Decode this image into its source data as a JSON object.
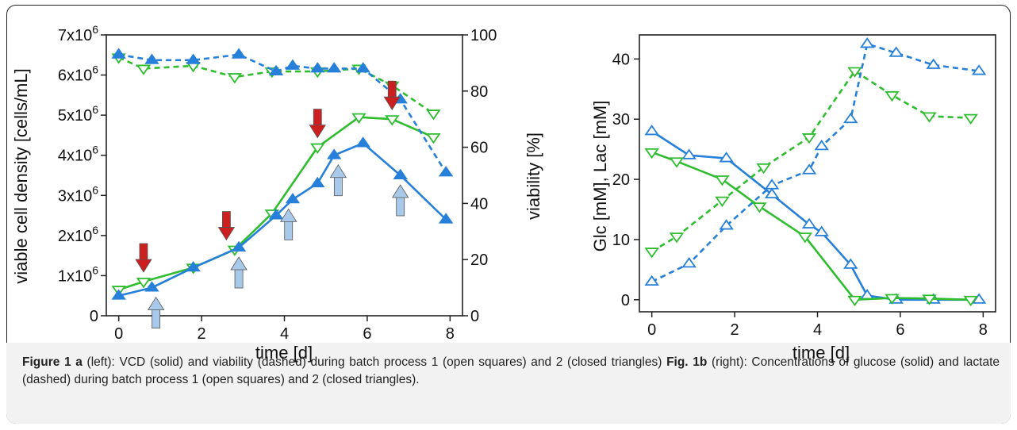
{
  "charts": [
    {
      "type": "line",
      "xlabel": "time [d]",
      "ylabel": "viable cell density [cells/mL]",
      "ylabel_right": "viability [%]",
      "xticks": [
        "0",
        "2",
        "4",
        "6",
        "8"
      ],
      "yticks_left": [
        "0",
        "1x10^6",
        "2x10^6",
        "3x10^6",
        "4x10^6",
        "5x10^6",
        "6x10^6",
        "7x10^6"
      ],
      "yticks_right": [
        "0",
        "20",
        "40",
        "60",
        "80",
        "100"
      ],
      "xlim": [
        -0.3,
        8.3
      ],
      "ylim": [
        0,
        7000000
      ],
      "ylim_right": [
        0,
        100
      ]
    },
    {
      "type": "line",
      "xlabel": "time [d]",
      "ylabel": "Glc [mM], Lac [mM]",
      "xticks": [
        "0",
        "2",
        "4",
        "6",
        "8"
      ],
      "yticks": [
        "0",
        "10",
        "20",
        "30",
        "40"
      ],
      "xlim": [
        -0.3,
        8.3
      ],
      "ylim": [
        -2,
        44
      ]
    }
  ],
  "chart_data": [
    {
      "type": "line",
      "xlabel": "time [d]",
      "ylabel": "viable cell density [cells/mL]",
      "ylabel_right": "viability [%]",
      "series": [
        {
          "axis": "left",
          "style": "solid",
          "color": "#2ebd2e",
          "marker": "open-triangle-down",
          "x": [
            0,
            0.6,
            1.8,
            2.8,
            3.7,
            4.8,
            5.8,
            6.6,
            7.6
          ],
          "y": [
            650000,
            850000,
            1200000,
            1650000,
            2550000,
            4200000,
            4950000,
            4900000,
            4450000
          ]
        },
        {
          "axis": "left",
          "style": "solid",
          "color": "#2680d9",
          "marker": "closed-triangle-up",
          "x": [
            0,
            0.8,
            1.8,
            2.9,
            3.8,
            4.2,
            4.8,
            5.2,
            5.9,
            6.8,
            7.9
          ],
          "y": [
            500000,
            700000,
            1200000,
            1700000,
            2500000,
            2900000,
            3300000,
            4000000,
            4300000,
            3500000,
            2400000
          ]
        },
        {
          "axis": "right",
          "style": "dashed",
          "color": "#2ebd2e",
          "marker": "open-triangle-down",
          "x": [
            0,
            0.6,
            1.8,
            2.8,
            3.7,
            4.8,
            5.8,
            6.6,
            7.6
          ],
          "y": [
            92,
            88,
            89,
            85,
            87,
            87,
            88,
            82,
            72
          ]
        },
        {
          "axis": "right",
          "style": "dashed",
          "color": "#2680d9",
          "marker": "closed-triangle-up",
          "x": [
            0,
            0.8,
            1.8,
            2.9,
            3.8,
            4.2,
            4.8,
            5.2,
            5.9,
            6.8,
            7.9
          ],
          "y": [
            93,
            91,
            91,
            93,
            87,
            89,
            88,
            88,
            88,
            77,
            51
          ]
        }
      ],
      "annotations": [
        {
          "type": "feed-arrow",
          "color": "#cc1f1f",
          "direction": "down",
          "x": [
            0.6,
            2.6,
            4.8,
            6.6
          ]
        },
        {
          "type": "feed-arrow",
          "color": "#a9c9ea",
          "direction": "up",
          "x": [
            0.9,
            2.9,
            4.1,
            5.3,
            6.8
          ]
        }
      ]
    },
    {
      "type": "line",
      "xlabel": "time [d]",
      "ylabel": "Glc [mM], Lac [mM]",
      "series": [
        {
          "style": "solid",
          "color": "#2680d9",
          "marker": "open-triangle-up",
          "x": [
            0,
            0.9,
            1.8,
            2.9,
            3.8,
            4.1,
            4.8,
            5.2,
            5.9,
            6.8,
            7.9
          ],
          "y": [
            28,
            24,
            23.5,
            17.5,
            12.5,
            11.2,
            5.8,
            0.7,
            0,
            0,
            0
          ]
        },
        {
          "style": "solid",
          "color": "#2ebd2e",
          "marker": "open-triangle-down",
          "x": [
            0,
            0.6,
            1.7,
            2.6,
            3.7,
            4.9,
            5.8,
            6.7,
            7.7
          ],
          "y": [
            24.5,
            23,
            20,
            15.5,
            10.5,
            0,
            0.3,
            0.2,
            0
          ]
        },
        {
          "style": "dashed",
          "color": "#2ebd2e",
          "marker": "open-triangle-down",
          "x": [
            0,
            0.6,
            1.7,
            2.7,
            3.8,
            4.9,
            5.8,
            6.7,
            7.7
          ],
          "y": [
            8,
            10.5,
            16.5,
            22,
            27,
            38,
            34,
            30.5,
            30.2
          ]
        },
        {
          "style": "dashed",
          "color": "#2680d9",
          "marker": "open-triangle-up",
          "x": [
            0,
            0.9,
            1.8,
            2.9,
            3.8,
            4.1,
            4.8,
            5.2,
            5.9,
            6.8,
            7.9
          ],
          "y": [
            3,
            6,
            12.3,
            19,
            21.5,
            25.5,
            30,
            42.5,
            41,
            39,
            38
          ]
        }
      ]
    }
  ],
  "caption": {
    "a_label": "Figure 1 a",
    "a_text": " (left): VCD (solid) and viability (dashed) during batch process 1 (open squares) and 2 (closed triangles) ",
    "b_label": "Fig. 1b",
    "b_text": " (right): Concentrations of glucose (solid) and lactate (dashed) during batch process 1 (open squares) and 2 (closed triangles)."
  }
}
